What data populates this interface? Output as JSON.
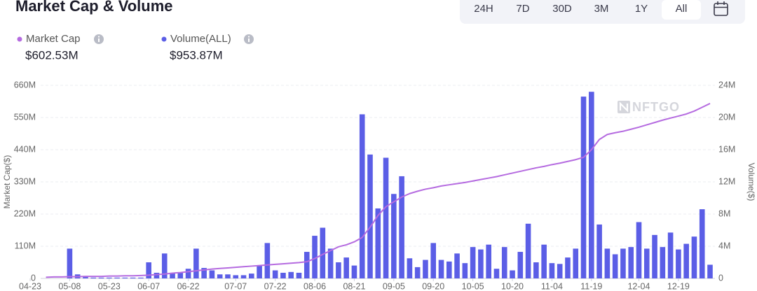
{
  "chart_data": {
    "type": "bar",
    "title": "Market Cap & Volume",
    "tabs": [
      "24H",
      "7D",
      "30D",
      "3M",
      "1Y",
      "All"
    ],
    "selected_tab": "All",
    "watermark": "NFTGO",
    "ylabel": "Market Cap($)",
    "y2label": "Volume($)",
    "categories": [
      "04-23",
      null,
      null,
      null,
      null,
      "05-08",
      null,
      null,
      null,
      null,
      "05-23",
      null,
      null,
      null,
      null,
      "06-07",
      null,
      null,
      null,
      null,
      "06-22",
      null,
      null,
      null,
      null,
      null,
      "07-07",
      null,
      null,
      null,
      null,
      "07-22",
      null,
      null,
      null,
      null,
      "08-06",
      null,
      null,
      null,
      null,
      "08-21",
      null,
      null,
      null,
      null,
      "09-05",
      null,
      null,
      null,
      null,
      "09-20",
      null,
      null,
      null,
      null,
      "10-05",
      null,
      null,
      null,
      null,
      "10-20",
      null,
      null,
      null,
      null,
      "11-04",
      null,
      null,
      null,
      null,
      "11-19",
      null,
      null,
      null,
      null,
      null,
      "12-04",
      null,
      null,
      null,
      null,
      "12-19",
      null,
      null,
      null,
      null
    ],
    "series": [
      {
        "name": "Market Cap",
        "type": "line",
        "color": "#b56be0",
        "summary": "$602.53M",
        "values": [
          null,
          null,
          4,
          5,
          5,
          6,
          6,
          7,
          7,
          7,
          8,
          8,
          9,
          9,
          10,
          11,
          13,
          15,
          18,
          20,
          23,
          26,
          29,
          32,
          34,
          36,
          38,
          40,
          42,
          44,
          46,
          48,
          50,
          52,
          54,
          57,
          68,
          82,
          95,
          108,
          115,
          125,
          140,
          175,
          215,
          245,
          262,
          278,
          290,
          298,
          305,
          310,
          316,
          320,
          324,
          328,
          333,
          338,
          343,
          348,
          354,
          360,
          366,
          372,
          378,
          383,
          389,
          394,
          400,
          406,
          414,
          440,
          475,
          492,
          498,
          503,
          510,
          517,
          525,
          533,
          541,
          548,
          555,
          562,
          572,
          585,
          598
        ]
      },
      {
        "name": "Volume(ALL)",
        "type": "bar",
        "color": "#5b5ee6",
        "axis": "y2",
        "summary": "$953.87M",
        "values": [
          0,
          0,
          0,
          0,
          0,
          3.7,
          0.5,
          0.2,
          0.1,
          0.1,
          0.1,
          0.1,
          0.1,
          0.1,
          0.1,
          2.0,
          0.7,
          3.1,
          0.7,
          0.7,
          1.2,
          3.7,
          1.3,
          1.0,
          0.5,
          0.5,
          0.4,
          0.4,
          0.6,
          1.6,
          4.4,
          1.0,
          0.7,
          0.8,
          0.7,
          3.3,
          5.3,
          6.3,
          3.7,
          2.0,
          2.6,
          1.6,
          20.4,
          15.4,
          8.7,
          15.0,
          10.5,
          12.7,
          2.5,
          1.4,
          2.3,
          4.4,
          2.3,
          2.1,
          3.1,
          1.9,
          3.9,
          3.6,
          4.2,
          1.2,
          3.9,
          1.0,
          3.3,
          6.8,
          2.0,
          4.2,
          1.9,
          1.8,
          2.6,
          3.7,
          22.6,
          23.2,
          6.7,
          3.7,
          3.0,
          3.7,
          3.9,
          7.0,
          3.7,
          5.4,
          3.9,
          5.7,
          3.6,
          4.3,
          5.2,
          8.6,
          1.7
        ]
      }
    ],
    "ylim": [
      0,
      660
    ],
    "yticks": [
      0,
      {
        "value": 110,
        "label": "110M"
      },
      {
        "value": 220,
        "label": "220M"
      },
      {
        "value": 330,
        "label": "330M"
      },
      {
        "value": 440,
        "label": "440M"
      },
      {
        "value": 550,
        "label": "550M"
      },
      {
        "value": 660,
        "label": "660M"
      }
    ],
    "y2lim": [
      0,
      24
    ],
    "y2ticks": [
      0,
      {
        "value": 4,
        "label": "4M"
      },
      {
        "value": 8,
        "label": "8M"
      },
      {
        "value": 12,
        "label": "12M"
      },
      {
        "value": 16,
        "label": "16M"
      },
      {
        "value": 20,
        "label": "20M"
      },
      {
        "value": 24,
        "label": "24M"
      }
    ],
    "grid": true
  }
}
